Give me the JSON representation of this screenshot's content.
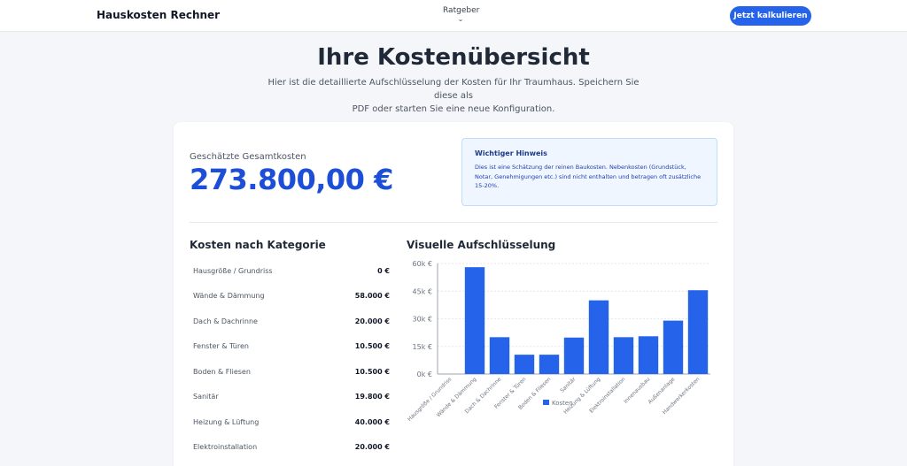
{
  "navbar": {
    "brand": "Hauskosten Rechner",
    "menu_label": "Ratgeber",
    "cta_label": "Jetzt kalkulieren"
  },
  "hero": {
    "title": "Ihre Kostenübersicht",
    "subtitle_line1": "Hier ist die detaillierte Aufschlüsselung der Kosten für Ihr Traumhaus. Speichern Sie diese als",
    "subtitle_line2": "PDF oder starten Sie eine neue Konfiguration."
  },
  "summary": {
    "label": "Geschätzte Gesamtkosten",
    "value": "273.800,00 €"
  },
  "notice": {
    "title": "Wichtiger Hinweis",
    "text": "Dies ist eine Schätzung der reinen Baukosten. Nebenkosten (Grundstück, Notar, Genehmigungen etc.) sind nicht enthalten und betragen oft zusätzliche 15-20%."
  },
  "categories": {
    "title": "Kosten nach Kategorie",
    "rows": [
      {
        "label": "Hausgröße / Grundriss",
        "value": "0 €"
      },
      {
        "label": "Wände & Dämmung",
        "value": "58.000 €"
      },
      {
        "label": "Dach & Dachrinne",
        "value": "20.000 €"
      },
      {
        "label": "Fenster & Türen",
        "value": "10.500 €"
      },
      {
        "label": "Boden & Fliesen",
        "value": "10.500 €"
      },
      {
        "label": "Sanitär",
        "value": "19.800 €"
      },
      {
        "label": "Heizung & Lüftung",
        "value": "40.000 €"
      },
      {
        "label": "Elektroinstallation",
        "value": "20.000 €"
      }
    ]
  },
  "chart_section": {
    "title": "Visuelle Aufschlüsselung"
  },
  "chart_data": {
    "type": "bar",
    "categories": [
      "Hausgröße / Grundriss",
      "Wände & Dämmung",
      "Dach & Dachrinne",
      "Fenster & Türen",
      "Boden & Fliesen",
      "Sanitär",
      "Heizung & Lüftung",
      "Elektroinstallation",
      "Innenausbau",
      "Außenanlage",
      "Handwerkerkosten"
    ],
    "series": [
      {
        "name": "Kosten",
        "values": [
          0,
          58000,
          20000,
          10500,
          10500,
          19800,
          40000,
          20000,
          20500,
          29000,
          45500
        ]
      }
    ],
    "y_ticks": [
      "0k €",
      "15k €",
      "30k €",
      "45k €",
      "60k €"
    ],
    "ylim": [
      0,
      60000
    ],
    "grid": true,
    "legend": "bottom",
    "bar_color": "#2563eb"
  }
}
